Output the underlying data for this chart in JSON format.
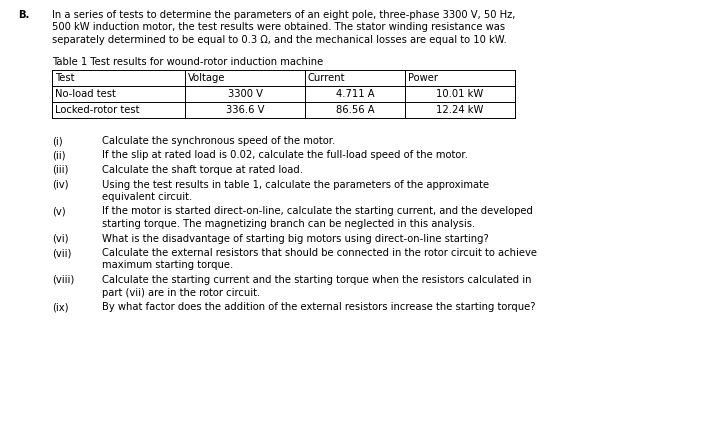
{
  "bg_color": "#ffffff",
  "bold_b": "B.",
  "intro_lines": [
    "In a series of tests to determine the parameters of an eight pole, three-phase 3300 V, 50 Hz,",
    "500 kW induction motor, the test results were obtained. The stator winding resistance was",
    "separately determined to be equal to 0.3 Ω, and the mechanical losses are equal to 10 kW."
  ],
  "table_title": "Table 1 Test results for wound-rotor induction machine",
  "table_headers": [
    "Test",
    "Voltage",
    "Current",
    "Power"
  ],
  "table_rows": [
    [
      "No-load test",
      "3300 V",
      "4.711 A",
      "10.01 kW"
    ],
    [
      "Locked-rotor test",
      "336.6 V",
      "86.56 A",
      "12.24 kW"
    ]
  ],
  "questions": [
    [
      "(i)",
      "Calculate the synchronous speed of the motor."
    ],
    [
      "(ii)",
      "If the slip at rated load is 0.02, calculate the full-load speed of the motor."
    ],
    [
      "(iii)",
      "Calculate the shaft torque at rated load."
    ],
    [
      "(iv)",
      "Using the test results in table 1, calculate the parameters of the approximate",
      "equivalent circuit."
    ],
    [
      "(v)",
      "If the motor is started direct-on-line, calculate the starting current, and the developed",
      "starting torque. The magnetizing branch can be neglected in this analysis."
    ],
    [
      "(vi)",
      "What is the disadvantage of starting big motors using direct-on-line starting?"
    ],
    [
      "(vii)",
      "Calculate the external resistors that should be connected in the rotor circuit to achieve",
      "maximum starting torque."
    ],
    [
      "(viii)",
      "Calculate the starting current and the starting torque when the resistors calculated in",
      "part (vii) are in the rotor circuit."
    ],
    [
      "(ix)",
      "By what factor does the addition of the external resistors increase the starting torque?"
    ]
  ],
  "fs": 7.2,
  "fs_bold": 7.2
}
